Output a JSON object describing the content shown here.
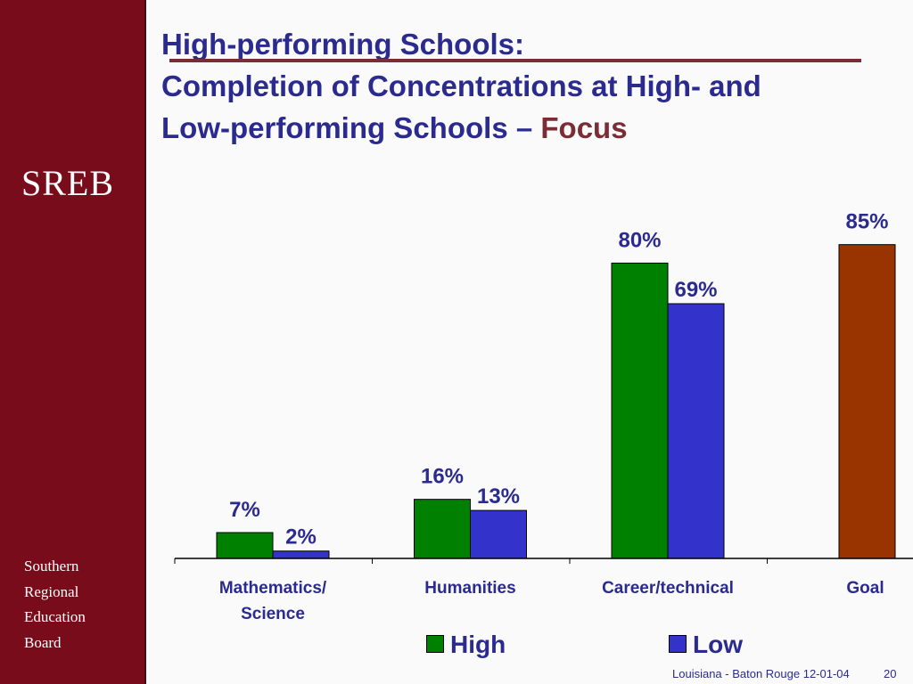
{
  "slide": {
    "title_line1": "High-performing Schools:",
    "title_line2": "Completion of Concentrations at High- and",
    "title_line3": "Low-performing Schools –",
    "title_accent": "Focus",
    "footer_text": "Louisiana - Baton Rouge 12-01-04",
    "page_number": "20"
  },
  "sidebar": {
    "logo": "SREB",
    "org_lines": [
      "Southern",
      "Regional",
      "Education",
      "Board"
    ]
  },
  "legend": {
    "high": "High",
    "low": "Low"
  },
  "colors": {
    "high": "#008000",
    "low": "#3333cc",
    "goal": "#993300",
    "sidebar": "#780c1a",
    "title": "#2b2b8f"
  },
  "chart_data": {
    "type": "bar",
    "categories": [
      "Mathematics/\nScience",
      "Humanities",
      "Career/technical",
      "Goal"
    ],
    "series": [
      {
        "name": "High",
        "values": [
          7,
          16,
          80,
          null
        ]
      },
      {
        "name": "Low",
        "values": [
          2,
          13,
          69,
          null
        ]
      },
      {
        "name": "",
        "values": [
          null,
          null,
          null,
          85
        ]
      }
    ],
    "value_labels": [
      [
        "7%",
        "16%",
        "80%",
        null
      ],
      [
        "2%",
        "13%",
        "69%",
        null
      ],
      [
        null,
        null,
        null,
        "85%"
      ]
    ],
    "ylim": [
      0,
      100
    ],
    "grid": false,
    "legend_position": "bottom",
    "title": "",
    "xlabel": "",
    "ylabel": ""
  }
}
